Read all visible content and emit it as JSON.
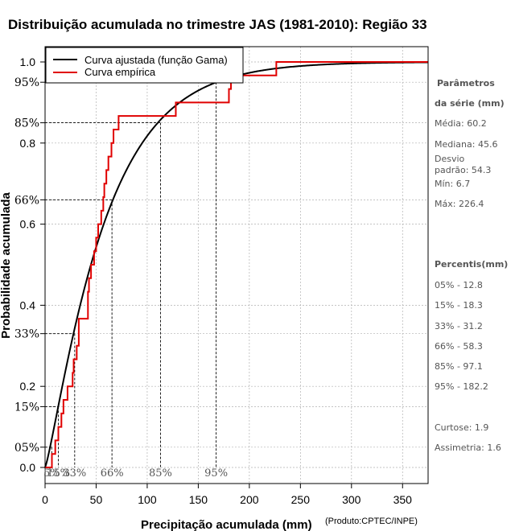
{
  "chart_data": {
    "type": "line",
    "title": "Distribuição acumulada no trimestre JAS (1981-2010): Região 33",
    "xlabel": "Precipitação acumulada (mm)",
    "ylabel": "Probabilidade acumulada",
    "credit": "(Produto:CPTEC/INPE)",
    "xlim": [
      0,
      375
    ],
    "ylim": [
      0,
      1
    ],
    "x_ticks": [
      0,
      50,
      100,
      150,
      200,
      250,
      300,
      350
    ],
    "x_tick_labels": [
      "0",
      "50",
      "100",
      "150",
      "200",
      "250",
      "300",
      "350"
    ],
    "y_ticks": [
      0.0,
      0.2,
      0.4,
      0.6,
      0.8,
      1.0
    ],
    "y_tick_labels": [
      "0.0",
      "0.2",
      "0.4",
      "0.6",
      "0.8",
      "1.0"
    ],
    "grid": true,
    "legend_position": "top-left",
    "series": [
      {
        "name": "Curva ajustada (função Gama)",
        "color": "#000000",
        "kind": "gamma_cdf",
        "mean": 60.2,
        "sd": 54.3
      },
      {
        "name": "Curva empírica",
        "color": "#e00000",
        "kind": "step",
        "x": [
          0,
          6.7,
          10,
          13,
          16,
          18,
          22,
          27,
          28,
          31,
          33,
          42,
          43,
          45,
          48,
          50,
          52,
          55,
          57,
          58,
          60,
          62,
          65,
          67,
          72,
          88,
          110,
          128,
          150,
          180,
          182,
          188,
          226.4,
          375
        ],
        "y": [
          0,
          0.0333,
          0.0667,
          0.1,
          0.1333,
          0.1667,
          0.2,
          0.2333,
          0.2667,
          0.3,
          0.3667,
          0.4333,
          0.4667,
          0.5,
          0.5333,
          0.5667,
          0.6,
          0.6333,
          0.6667,
          0.7,
          0.7333,
          0.7667,
          0.8,
          0.8333,
          0.8667,
          0.8667,
          0.8667,
          0.9,
          0.9,
          0.9333,
          0.9667,
          0.9667,
          1.0,
          1.0
        ]
      }
    ],
    "percentile_markers": [
      {
        "label": "05%",
        "prob": 0.05,
        "x": 6.5,
        "xlabel": "5%"
      },
      {
        "label": "15%",
        "prob": 0.15,
        "x": 13.0,
        "xlabel": "15%"
      },
      {
        "label": "33%",
        "prob": 0.33,
        "x": 29.0,
        "xlabel": "33%"
      },
      {
        "label": "66%",
        "prob": 0.66,
        "x": 65.5,
        "xlabel": "66%"
      },
      {
        "label": "85%",
        "prob": 0.85,
        "x": 113.0,
        "xlabel": "85%"
      },
      {
        "label": "95%",
        "prob": 0.95,
        "x": 167.5,
        "xlabel": "95%"
      }
    ]
  },
  "side_panel": {
    "params_heading_1": "Parâmetros",
    "params_heading_2": "da série (mm)",
    "params": [
      "Média: 60.2",
      "Mediana: 45.6",
      "Desvio",
      "padrão: 54.3",
      "Mín: 6.7",
      "Máx: 226.4"
    ],
    "percentiles_heading": "Percentis(mm)",
    "percentiles": [
      "05% - 12.8",
      "15% - 18.3",
      "33% - 31.2",
      "66% - 58.3",
      "85% - 97.1",
      "95% - 182.2"
    ],
    "extra": [
      "Curtose: 1.9",
      "Assimetria: 1.6"
    ]
  },
  "colors": {
    "fitted": "#000000",
    "empirical": "#e00000",
    "grid": "#b0b0b0",
    "side_text": "#555555"
  }
}
